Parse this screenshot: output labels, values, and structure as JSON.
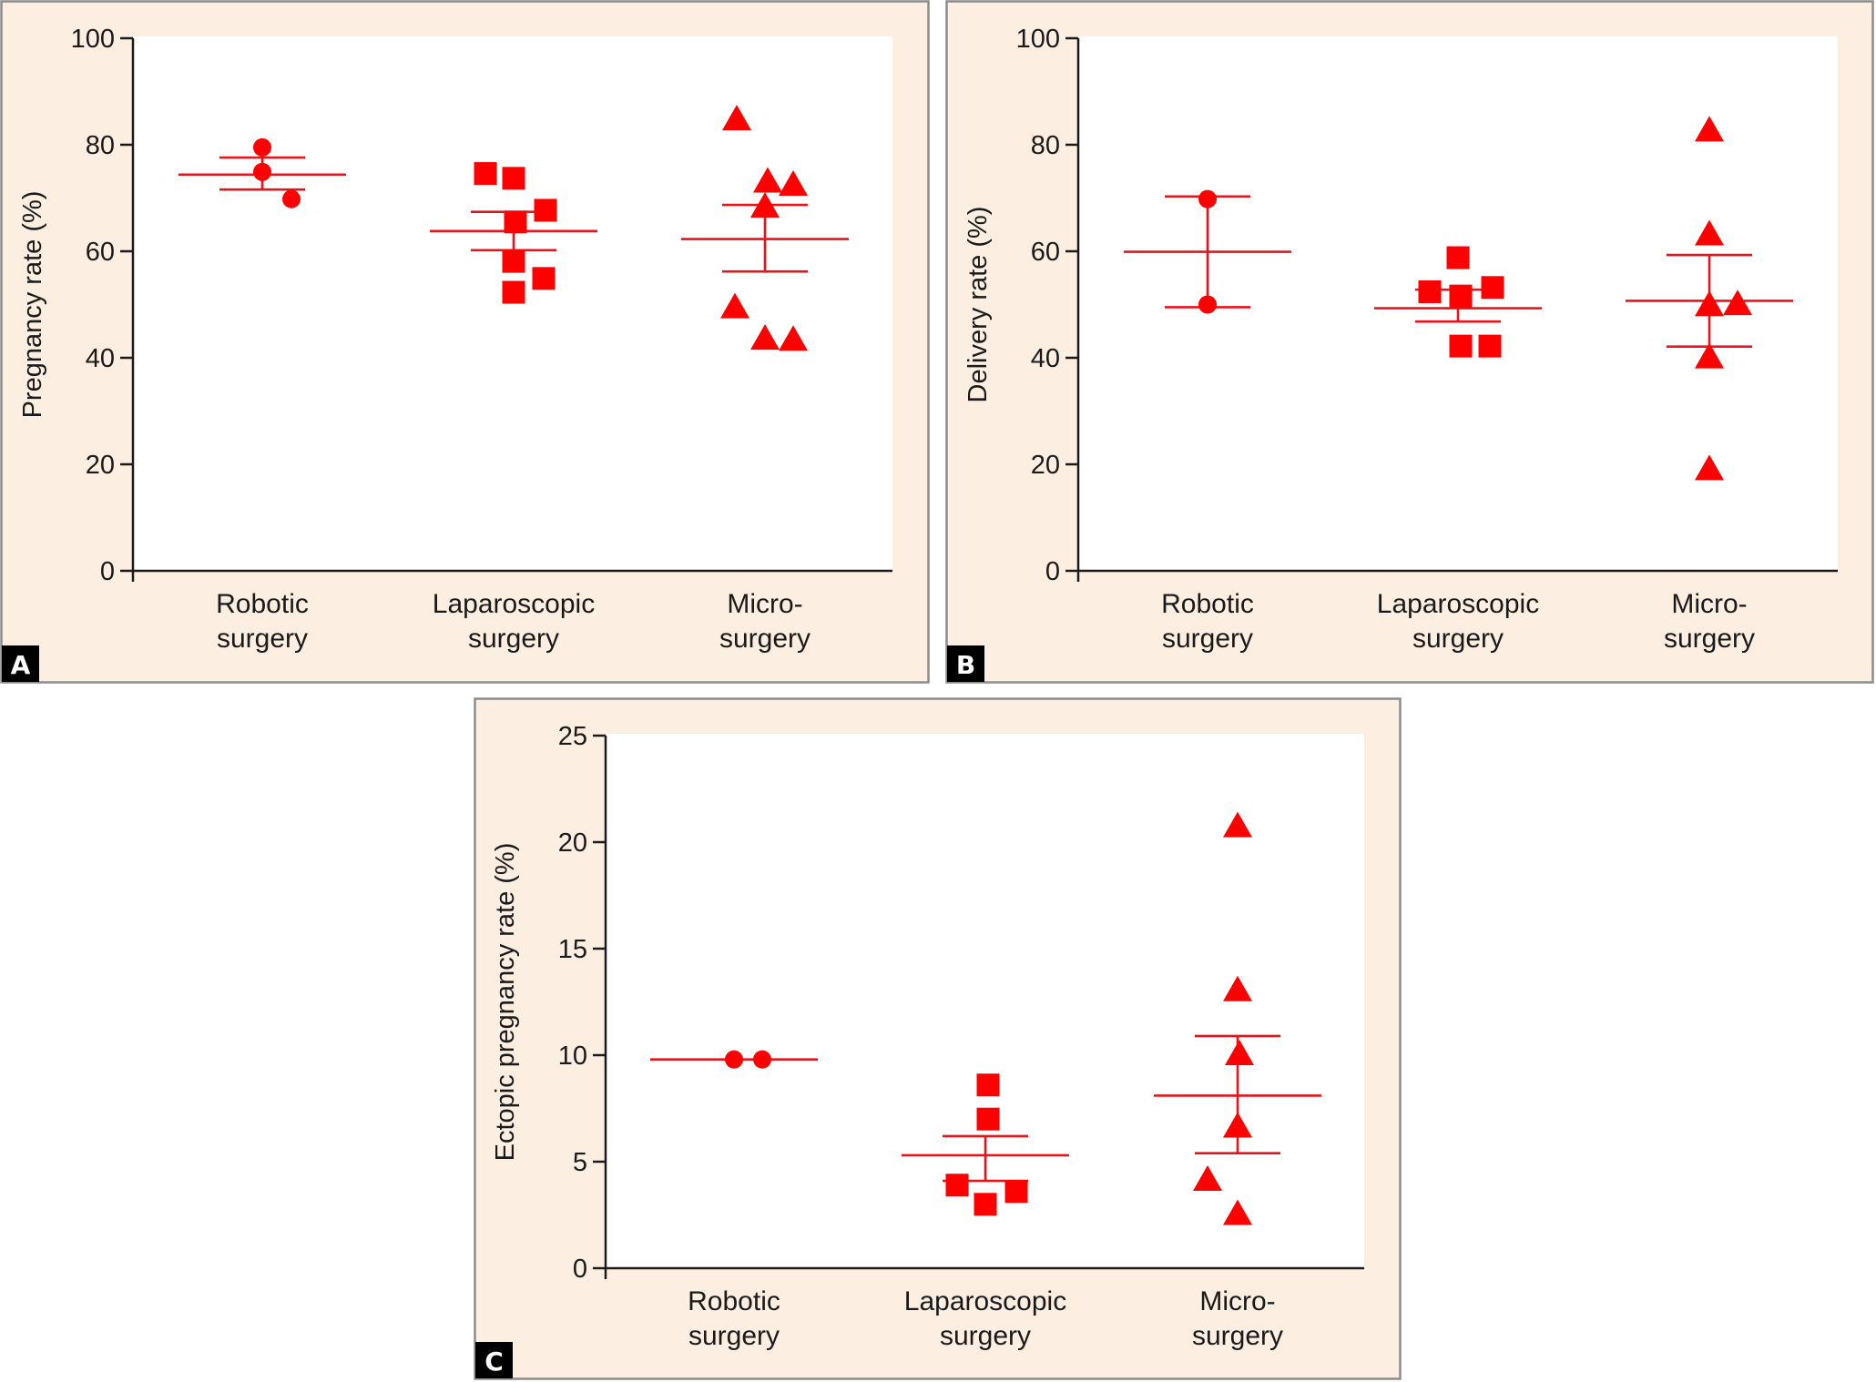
{
  "colors": {
    "marker": "#ff0000",
    "stat_line": "#e8141c",
    "panel_bg": "#fcefe2",
    "axis": "#1a1a1a"
  },
  "chart_data": [
    {
      "panel": "A",
      "type": "scatter",
      "title": "",
      "xlabel": "",
      "ylabel": "Pregnancy rate (%)",
      "ylim": [
        0,
        100
      ],
      "yticks": [
        0,
        20,
        40,
        60,
        80,
        100
      ],
      "grid": false,
      "categories": [
        [
          "Robotic",
          "surgery"
        ],
        [
          "Laparoscopic",
          "surgery"
        ],
        [
          "Micro-",
          "surgery"
        ]
      ],
      "groups": [
        {
          "name": "Robotic surgery",
          "marker": "circle",
          "values": [
            79.5,
            74.9,
            69.8
          ],
          "mean": 74.4,
          "sem_upper": 77.6,
          "sem_lower": 71.6
        },
        {
          "name": "Laparoscopic surgery",
          "marker": "square",
          "values": [
            74.6,
            73.7,
            67.7,
            65.5,
            58.1,
            54.9,
            52.3
          ],
          "mean": 63.8,
          "sem_upper": 67.4,
          "sem_lower": 60.2
        },
        {
          "name": "Micro-surgery",
          "marker": "triangle",
          "values": [
            84.6,
            72.3,
            72.9,
            68.2,
            49.3,
            43.4,
            43.2
          ],
          "mean": 62.3,
          "sem_upper": 68.7,
          "sem_lower": 56.2
        }
      ]
    },
    {
      "panel": "B",
      "type": "scatter",
      "title": "",
      "xlabel": "",
      "ylabel": "Delivery rate (%)",
      "ylim": [
        0,
        100
      ],
      "yticks": [
        0,
        20,
        40,
        60,
        80,
        100
      ],
      "grid": false,
      "categories": [
        [
          "Robotic",
          "surgery"
        ],
        [
          "Laparoscopic",
          "surgery"
        ],
        [
          "Micro-",
          "surgery"
        ]
      ],
      "groups": [
        {
          "name": "Robotic surgery",
          "marker": "circle",
          "values": [
            69.8,
            50.0
          ],
          "mean": 59.9,
          "sem_upper": 70.3,
          "sem_lower": 49.5
        },
        {
          "name": "Laparoscopic surgery",
          "marker": "square",
          "values": [
            58.8,
            52.4,
            51.6,
            53.2,
            42.2,
            42.2
          ],
          "mean": 49.3,
          "sem_upper": 52.8,
          "sem_lower": 46.8
        },
        {
          "name": "Micro-surgery",
          "marker": "triangle",
          "values": [
            82.5,
            63.0,
            49.7,
            49.9,
            39.9,
            18.9
          ],
          "mean": 50.7,
          "sem_upper": 59.3,
          "sem_lower": 42.1
        }
      ]
    },
    {
      "panel": "C",
      "type": "scatter",
      "title": "",
      "xlabel": "",
      "ylabel": "Ectopic pregnancy rate (%)",
      "ylim": [
        0,
        25
      ],
      "yticks": [
        0,
        5,
        10,
        15,
        20,
        25
      ],
      "grid": false,
      "categories": [
        [
          "Robotic",
          "surgery"
        ],
        [
          "Laparoscopic",
          "surgery"
        ],
        [
          "Micro-",
          "surgery"
        ]
      ],
      "groups": [
        {
          "name": "Robotic surgery",
          "marker": "circle",
          "values": [
            9.8,
            9.8
          ],
          "mean": 9.8,
          "sem_upper": 9.8,
          "sem_lower": 9.8
        },
        {
          "name": "Laparoscopic surgery",
          "marker": "square",
          "values": [
            8.6,
            7.0,
            3.9,
            3.6,
            3.0
          ],
          "mean": 5.3,
          "sem_upper": 6.2,
          "sem_lower": 4.1
        },
        {
          "name": "Micro-surgery",
          "marker": "triangle",
          "values": [
            20.7,
            13.0,
            10.0,
            6.6,
            4.1,
            2.5
          ],
          "mean": 8.1,
          "sem_upper": 10.9,
          "sem_lower": 5.4
        }
      ]
    }
  ]
}
